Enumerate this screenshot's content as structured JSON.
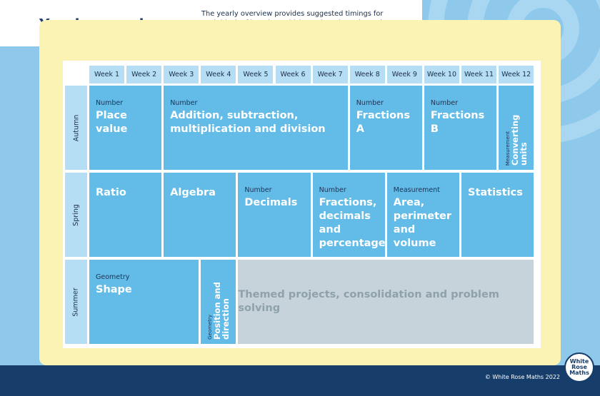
{
  "header": {
    "title": "Yearly overview",
    "description": "The yearly overview provides suggested timings for each block of learning, which can be adapted to suit different term dates or other requirements."
  },
  "weeks": [
    "Week 1",
    "Week 2",
    "Week 3",
    "Week 4",
    "Week 5",
    "Week 6",
    "Week 7",
    "Week 8",
    "Week 9",
    "Week 10",
    "Week 11",
    "Week 12"
  ],
  "terms": [
    {
      "name": "Autumn",
      "blocks": [
        {
          "category": "Number",
          "title": "Place value"
        },
        {
          "category": "Number",
          "title": "Addition, subtraction, multiplication and division"
        },
        {
          "category": "Number",
          "title": "Fractions A"
        },
        {
          "category": "Number",
          "title": "Fractions B"
        },
        {
          "category": "Measurement",
          "title": "Converting units"
        }
      ]
    },
    {
      "name": "Spring",
      "blocks": [
        {
          "title": "Ratio"
        },
        {
          "title": "Algebra"
        },
        {
          "category": "Number",
          "title": "Decimals"
        },
        {
          "category": "Number",
          "title": "Fractions, decimals and percentages"
        },
        {
          "category": "Measurement",
          "title": "Area, perimeter and volume"
        },
        {
          "title": "Statistics"
        }
      ]
    },
    {
      "name": "Summer",
      "blocks": [
        {
          "category": "Geometry",
          "title": "Shape"
        },
        {
          "category": "Geometry",
          "title": "Position and direction"
        },
        {
          "title": "Themed projects, consolidation and problem solving"
        }
      ]
    }
  ],
  "footer": {
    "copyright": "© White Rose Maths 2022",
    "logo": "White Rose Maths"
  }
}
